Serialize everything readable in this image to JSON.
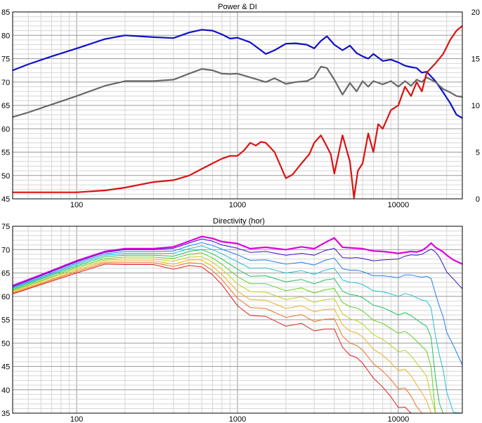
{
  "colors": {
    "power": "#1010c8",
    "di_curve": "#686868",
    "di": "#dd1111",
    "grid_major": "#9a9a9a",
    "grid_minor": "#d6d6d6",
    "border": "#000000",
    "background": "#ffffff"
  },
  "chart_data": [
    {
      "type": "line",
      "title": "Power & DI",
      "x_scale": "log",
      "xlim": [
        40,
        25000
      ],
      "ylim": [
        45,
        85
      ],
      "y2lim": [
        0,
        20
      ],
      "grid": true,
      "x_ticks": [
        "100",
        "1000",
        "10000"
      ],
      "y_ticks": [
        "45",
        "50",
        "55",
        "60",
        "65",
        "70",
        "75",
        "80",
        "85"
      ],
      "y2_ticks": [
        "0",
        "5",
        "10",
        "15",
        "20"
      ],
      "series": [
        {
          "color": "#1010c8",
          "axis": "left",
          "x": [
            40,
            50,
            70,
            100,
            150,
            200,
            300,
            400,
            500,
            600,
            700,
            800,
            900,
            1000,
            1200,
            1500,
            1700,
            2000,
            2300,
            2700,
            3000,
            3300,
            3600,
            4000,
            4500,
            5000,
            5500,
            6000,
            6500,
            7000,
            8000,
            9000,
            10000,
            11000,
            12000,
            13000,
            14000,
            15000,
            17000,
            19000,
            21000,
            23000,
            25000
          ],
          "y": [
            72.5,
            73.8,
            75.5,
            77.2,
            79.2,
            80.0,
            79.6,
            79.4,
            80.6,
            81.2,
            81.0,
            80.2,
            79.3,
            79.5,
            78.5,
            76.0,
            76.8,
            78.2,
            78.3,
            78.0,
            77.2,
            78.8,
            79.8,
            78.0,
            76.8,
            77.8,
            76.2,
            75.5,
            75.0,
            76.0,
            74.5,
            74.8,
            74.2,
            73.5,
            73.2,
            73.0,
            72.0,
            72.2,
            70.2,
            67.8,
            65.5,
            63.0,
            62.3
          ]
        },
        {
          "color": "#686868",
          "axis": "left",
          "x": [
            40,
            50,
            70,
            100,
            150,
            200,
            300,
            400,
            500,
            600,
            700,
            800,
            900,
            1000,
            1200,
            1500,
            1700,
            2000,
            2300,
            2700,
            3000,
            3300,
            3600,
            4000,
            4500,
            5000,
            5500,
            6000,
            6500,
            7000,
            8000,
            9000,
            10000,
            11000,
            12000,
            13000,
            14000,
            15000,
            17000,
            19000,
            21000,
            23000,
            25000
          ],
          "y": [
            62.5,
            63.5,
            65.2,
            67.0,
            69.2,
            70.2,
            70.2,
            70.5,
            71.8,
            72.8,
            72.5,
            71.8,
            71.7,
            71.8,
            71.0,
            70.0,
            70.8,
            69.6,
            70.0,
            70.2,
            71.0,
            73.3,
            73.0,
            70.5,
            67.3,
            69.8,
            68.0,
            70.2,
            69.0,
            70.2,
            69.5,
            70.2,
            69.0,
            70.2,
            69.2,
            70.5,
            70.0,
            71.0,
            70.0,
            68.5,
            67.8,
            67.0,
            66.8
          ]
        },
        {
          "color": "#dd1111",
          "axis": "right",
          "x": [
            40,
            60,
            100,
            150,
            200,
            300,
            400,
            500,
            600,
            700,
            800,
            900,
            1000,
            1100,
            1200,
            1300,
            1400,
            1500,
            1700,
            2000,
            2200,
            2500,
            2800,
            3000,
            3300,
            3500,
            3800,
            4000,
            4500,
            5000,
            5300,
            5600,
            6000,
            6500,
            7000,
            7500,
            8000,
            9000,
            10000,
            11000,
            12000,
            13000,
            14000,
            15000,
            17000,
            19000,
            21000,
            23000,
            25000
          ],
          "y": [
            0.7,
            0.7,
            0.7,
            0.9,
            1.2,
            1.8,
            2.0,
            2.5,
            3.2,
            3.8,
            4.3,
            4.6,
            4.6,
            5.2,
            6.0,
            5.7,
            6.1,
            6.0,
            5.0,
            2.2,
            2.6,
            3.8,
            4.8,
            6.0,
            6.8,
            6.0,
            4.8,
            2.7,
            6.8,
            4.0,
            0.1,
            3.0,
            3.8,
            7.0,
            5.0,
            8.0,
            7.5,
            9.5,
            10.0,
            12.0,
            11.0,
            12.5,
            11.5,
            13.5,
            14.5,
            15.5,
            17.0,
            18.0,
            18.5
          ]
        }
      ]
    },
    {
      "type": "line",
      "title": "Directivity (hor)",
      "x_scale": "log",
      "xlim": [
        40,
        25000
      ],
      "ylim": [
        35,
        75
      ],
      "grid": true,
      "x_ticks": [
        "100",
        "1000",
        "10000"
      ],
      "y_ticks": [
        "35",
        "40",
        "45",
        "50",
        "55",
        "60",
        "65",
        "70",
        "75"
      ],
      "x": [
        40,
        60,
        100,
        150,
        200,
        300,
        400,
        500,
        600,
        700,
        800,
        1000,
        1200,
        1500,
        2000,
        2500,
        3000,
        3500,
        4000,
        4500,
        5000,
        5500,
        6000,
        7000,
        8000,
        9000,
        10000,
        11000,
        12000,
        13000,
        14000,
        15000,
        16000,
        17000,
        18000,
        19000,
        20000,
        22000,
        25000
      ],
      "series": [
        {
          "color": "#e000e0",
          "y": [
            62.3,
            64.6,
            67.6,
            69.6,
            70.2,
            70.2,
            70.6,
            71.8,
            72.8,
            72.4,
            71.7,
            71.3,
            70.2,
            70.5,
            70.0,
            70.6,
            70.2,
            71.5,
            72.5,
            70.5,
            70.4,
            70.3,
            70.2,
            69.7,
            69.6,
            69.4,
            69.2,
            69.4,
            69.6,
            69.5,
            69.8,
            70.5,
            71.4,
            70.5,
            70.0,
            69.5,
            68.8,
            67.8,
            66.9
          ]
        },
        {
          "color": "#3a10c0",
          "y": [
            62.1,
            64.4,
            67.4,
            69.4,
            70.0,
            70.0,
            70.3,
            71.4,
            72.3,
            71.8,
            71.0,
            70.3,
            69.4,
            69.6,
            68.8,
            69.2,
            68.8,
            69.8,
            70.3,
            68.3,
            68.2,
            68.3,
            68.1,
            67.6,
            67.8,
            67.9,
            68.0,
            68.6,
            68.9,
            68.8,
            69.0,
            69.6,
            70.1,
            69.5,
            68.4,
            66.8,
            65.2,
            63.7,
            61.6
          ]
        },
        {
          "color": "#2080f0",
          "y": [
            61.9,
            64.1,
            67.1,
            69.1,
            69.6,
            69.6,
            69.7,
            70.8,
            71.5,
            70.9,
            70.1,
            68.9,
            67.7,
            67.8,
            66.9,
            67.3,
            66.7,
            67.7,
            68.2,
            65.9,
            65.6,
            65.6,
            65.3,
            64.4,
            64.4,
            64.2,
            64.0,
            64.6,
            64.6,
            64.3,
            64.1,
            64.3,
            63.8,
            60.6,
            57.9,
            55.6,
            52.3,
            49.5,
            45.3
          ]
        },
        {
          "color": "#20c0d0",
          "y": [
            61.7,
            63.9,
            66.8,
            68.8,
            69.2,
            69.2,
            69.2,
            70.2,
            70.8,
            70.0,
            69.1,
            67.4,
            66.0,
            66.1,
            65.0,
            65.5,
            64.7,
            65.6,
            66.0,
            63.5,
            63.0,
            62.9,
            62.5,
            61.2,
            61.0,
            60.5,
            60.0,
            60.6,
            60.3,
            59.7,
            59.2,
            59.0,
            57.5,
            51.6,
            47.5,
            44.3,
            39.5,
            35.2,
            35.0
          ]
        },
        {
          "color": "#20c060",
          "y": [
            61.5,
            63.7,
            66.5,
            68.5,
            68.8,
            68.8,
            68.6,
            69.6,
            70.0,
            69.1,
            68.0,
            65.8,
            64.3,
            64.4,
            63.1,
            63.6,
            62.7,
            63.5,
            63.8,
            61.1,
            60.4,
            60.2,
            59.7,
            58.1,
            57.6,
            56.8,
            56.0,
            56.5,
            55.9,
            55.0,
            54.2,
            53.6,
            51.2,
            42.6,
            37.1,
            35.0,
            35.0,
            35.0,
            35.0
          ]
        },
        {
          "color": "#60d020",
          "y": [
            61.3,
            63.4,
            66.2,
            68.1,
            68.4,
            68.4,
            68.1,
            69.0,
            69.3,
            68.2,
            66.9,
            64.2,
            62.7,
            62.7,
            61.2,
            61.8,
            60.7,
            61.4,
            61.7,
            58.7,
            57.8,
            57.5,
            56.9,
            54.9,
            54.2,
            53.1,
            52.1,
            52.5,
            51.6,
            50.4,
            49.3,
            48.3,
            44.8,
            35.0,
            35.0,
            35.0,
            35.0,
            35.0,
            35.0
          ]
        },
        {
          "color": "#c0d020",
          "y": [
            61.1,
            63.2,
            65.9,
            67.8,
            68.0,
            68.0,
            67.5,
            68.4,
            68.5,
            67.3,
            65.8,
            62.7,
            61.0,
            60.9,
            59.3,
            59.9,
            58.7,
            59.3,
            59.5,
            56.3,
            55.2,
            54.8,
            54.1,
            51.8,
            50.8,
            49.5,
            48.1,
            48.5,
            47.3,
            45.7,
            44.3,
            42.9,
            38.5,
            35.0,
            35.0,
            35.0,
            35.0,
            35.0,
            35.0
          ]
        },
        {
          "color": "#f0b020",
          "y": [
            60.9,
            62.9,
            65.6,
            67.5,
            67.6,
            67.6,
            66.9,
            67.8,
            67.8,
            66.4,
            64.7,
            61.1,
            59.3,
            59.2,
            57.4,
            58.0,
            56.7,
            57.2,
            57.3,
            53.9,
            52.6,
            52.2,
            51.3,
            48.7,
            47.4,
            45.8,
            44.1,
            44.4,
            43.0,
            41.1,
            39.4,
            37.6,
            35.0,
            35.0,
            35.0,
            35.0,
            35.0,
            35.0,
            35.0
          ]
        },
        {
          "color": "#f07020",
          "y": [
            60.7,
            62.7,
            65.3,
            67.2,
            67.2,
            67.2,
            66.4,
            67.2,
            67.0,
            65.5,
            63.6,
            59.6,
            57.6,
            57.4,
            55.5,
            56.1,
            54.6,
            55.1,
            55.2,
            51.5,
            50.0,
            49.5,
            48.5,
            45.6,
            44.0,
            42.2,
            40.2,
            40.4,
            38.7,
            36.4,
            35.0,
            35.0,
            35.0,
            35.0,
            35.0,
            35.0,
            35.0,
            35.0,
            35.0
          ]
        },
        {
          "color": "#e02020",
          "y": [
            60.5,
            62.5,
            65.0,
            66.9,
            66.8,
            66.8,
            65.8,
            66.6,
            66.3,
            64.6,
            62.5,
            58.0,
            55.9,
            55.7,
            53.6,
            54.2,
            52.6,
            53.0,
            53.0,
            49.1,
            47.4,
            46.9,
            45.7,
            42.5,
            40.6,
            38.5,
            36.2,
            36.3,
            35.0,
            35.0,
            35.0,
            35.0,
            35.0,
            35.0,
            35.0,
            35.0,
            35.0,
            35.0,
            35.0
          ]
        }
      ]
    }
  ]
}
